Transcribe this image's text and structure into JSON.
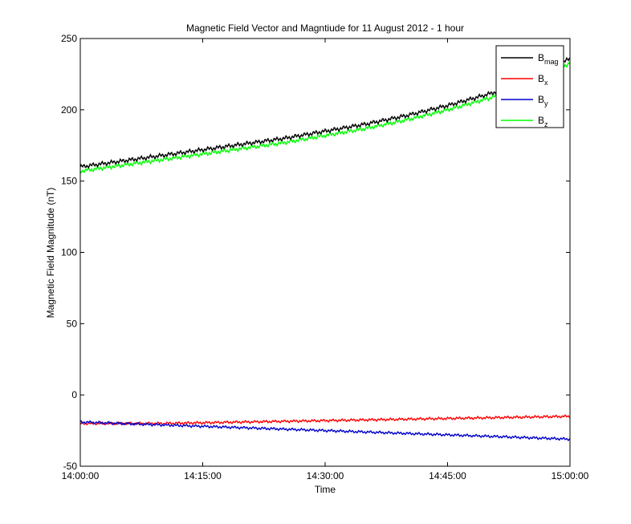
{
  "chart_data": {
    "type": "line",
    "title": "Magnetic Field Vector and Magntiude for 11 August 2012 - 1 hour",
    "xlabel": "Time",
    "ylabel": "Magnetic Field Magnitude (nT)",
    "ylim": [
      -50,
      250
    ],
    "yticks": [
      -50,
      0,
      50,
      100,
      150,
      200,
      250
    ],
    "xlim": [
      "14:00:00",
      "15:00:00"
    ],
    "xticks": [
      "14:00:00",
      "14:15:00",
      "14:30:00",
      "14:45:00",
      "15:00:00"
    ],
    "grid": false,
    "legend_placement": "top-right",
    "x_minutes": [
      0,
      5,
      10,
      15,
      20,
      25,
      30,
      35,
      40,
      45,
      50,
      55,
      60
    ],
    "series": [
      {
        "name": "B",
        "subscript": "mag",
        "color": "#000000",
        "values": [
          160,
          164,
          168,
          172,
          176,
          180,
          185,
          190,
          196,
          203,
          211,
          220,
          236
        ]
      },
      {
        "name": "B",
        "subscript": "x",
        "color": "#ff0000",
        "values": [
          -20,
          -20,
          -20,
          -19.5,
          -19,
          -18.5,
          -18,
          -17.5,
          -17,
          -16.5,
          -16,
          -15.5,
          -15
        ]
      },
      {
        "name": "B",
        "subscript": "y",
        "color": "#0000cc",
        "values": [
          -19,
          -20,
          -21,
          -22,
          -23,
          -24,
          -25,
          -26,
          -27,
          -28,
          -29,
          -30,
          -31
        ]
      },
      {
        "name": "B",
        "subscript": "z",
        "color": "#00ff00",
        "values": [
          157,
          161,
          165,
          169,
          173,
          177,
          182,
          187,
          193,
          200,
          208,
          217,
          233
        ]
      }
    ]
  }
}
